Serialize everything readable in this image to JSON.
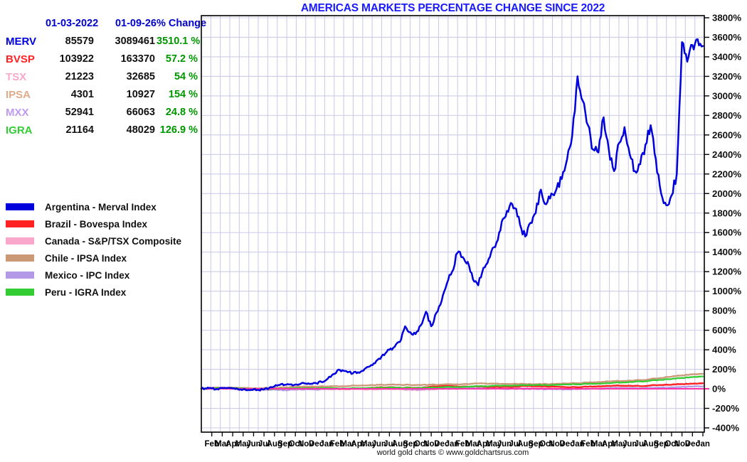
{
  "title": "AMERICAS MARKETS PERCENTAGE CHANGE SINCE 2022",
  "footer": "world gold charts © www.goldchartsrus.com",
  "colors": {
    "title_blue": "#1a1aff",
    "header_blue": "#0000cc",
    "change_green": "#009600",
    "grid": "#ccccea",
    "frame": "#000000",
    "zero_line": "#ff33aa"
  },
  "table": {
    "headers": [
      "01-03-2022",
      "01-09-26",
      "% Change"
    ],
    "rows": [
      {
        "symbol": "MERV",
        "color": "#0000dd",
        "start": "85579",
        "end": "3089461",
        "change": "3510.1 %"
      },
      {
        "symbol": "BVSP",
        "color": "#ff2222",
        "start": "103922",
        "end": "163370",
        "change": "57.2 %"
      },
      {
        "symbol": "TSX",
        "color": "#f9a8cb",
        "start": "21223",
        "end": "32685",
        "change": "54 %"
      },
      {
        "symbol": "IPSA",
        "color": "#dfab89",
        "start": "4301",
        "end": "10927",
        "change": "154 %"
      },
      {
        "symbol": "MXX",
        "color": "#c09af0",
        "start": "52941",
        "end": "66063",
        "change": "24.8 %"
      },
      {
        "symbol": "IGRA",
        "color": "#33cc33",
        "start": "21164",
        "end": "48029",
        "change": "126.9 %"
      }
    ]
  },
  "legend": [
    {
      "label": "Argentina - Merval Index",
      "color": "#0000dd"
    },
    {
      "label": "Brazil - Bovespa Index",
      "color": "#ff2222"
    },
    {
      "label": "Canada - S&P/TSX Composite",
      "color": "#f9a8cb"
    },
    {
      "label": "Chile - IPSA Index",
      "color": "#cc9977"
    },
    {
      "label": "Mexico - IPC Index",
      "color": "#b399e6"
    },
    {
      "label": "Peru - IGRA Index",
      "color": "#33cc33"
    }
  ],
  "chart_data": {
    "type": "line",
    "title": "AMERICAS MARKETS PERCENTAGE CHANGE SINCE 2022",
    "x_start": "2022-01-03",
    "x_end": "2026-01-09",
    "x_tick_labels": [
      "Feb",
      "Mar",
      "Apr",
      "May",
      "Jun",
      "Jul",
      "Aug",
      "Sep",
      "Oct",
      "Nov",
      "Dec",
      "Jan",
      "Feb",
      "Mar",
      "Apr",
      "May",
      "Jun",
      "Jul",
      "Aug",
      "Sep",
      "Oct",
      "Nov",
      "Dec",
      "Jan",
      "Feb",
      "Mar",
      "Apr",
      "May",
      "Jun",
      "Jul",
      "Aug",
      "Sep",
      "Oct",
      "Nov",
      "Dec",
      "Jan",
      "Feb",
      "Mar",
      "Apr",
      "May",
      "Jun",
      "Jul",
      "Aug",
      "Sep",
      "Oct",
      "Nov",
      "Dec",
      "Jan"
    ],
    "ylim": [
      -400,
      3800
    ],
    "y_tick_step": 200,
    "y_tick_suffix": "%",
    "grid": true,
    "zero_line": 0,
    "legend_position": "left",
    "series": [
      {
        "name": "Canada - S&P/TSX Composite",
        "symbol": "TSX",
        "color": "#f9a8cb",
        "points_per_month": 1,
        "values": [
          0,
          0,
          3,
          -2,
          -5,
          -11,
          -8,
          -8,
          -12,
          -9,
          -5,
          -9,
          -3,
          -2,
          -5,
          -3,
          -7,
          -6,
          -4,
          -7,
          -10,
          -12,
          -6,
          -2,
          -1,
          0,
          3,
          1,
          4,
          2,
          6,
          9,
          12,
          14,
          19,
          16,
          18,
          19,
          17,
          15,
          21,
          25,
          28,
          33,
          38,
          42,
          46,
          50,
          54
        ]
      },
      {
        "name": "Mexico - IPC Index",
        "symbol": "MXX",
        "color": "#b399e6",
        "points_per_month": 1,
        "values": [
          0,
          1,
          5,
          3,
          -2,
          -9,
          -8,
          -6,
          -13,
          -8,
          -3,
          -8,
          2,
          0,
          2,
          4,
          6,
          1,
          3,
          2,
          -3,
          -7,
          0,
          8,
          9,
          6,
          8,
          7,
          5,
          -1,
          0,
          -2,
          -1,
          -4,
          -6,
          -6,
          -4,
          -1,
          0,
          5,
          8,
          9,
          7,
          10,
          13,
          16,
          20,
          23,
          24.8
        ]
      },
      {
        "name": "Brazil - Bovespa Index",
        "symbol": "BVSP",
        "color": "#ff2222",
        "points_per_month": 1,
        "values": [
          0,
          8,
          12,
          10,
          5,
          -5,
          -2,
          6,
          8,
          10,
          8,
          5,
          5,
          2,
          0,
          3,
          8,
          14,
          17,
          12,
          13,
          9,
          22,
          29,
          28,
          24,
          23,
          21,
          17,
          19,
          22,
          31,
          27,
          25,
          22,
          16,
          17,
          21,
          27,
          30,
          33,
          33,
          28,
          35,
          39,
          42,
          50,
          52,
          57.2
        ]
      },
      {
        "name": "Chile - IPSA Index",
        "symbol": "IPSA",
        "color": "#cc9977",
        "points_per_month": 1,
        "values": [
          0,
          3,
          8,
          12,
          10,
          5,
          8,
          12,
          15,
          20,
          24,
          22,
          25,
          28,
          28,
          33,
          36,
          40,
          44,
          42,
          40,
          38,
          42,
          44,
          46,
          48,
          52,
          55,
          52,
          50,
          53,
          50,
          48,
          50,
          52,
          55,
          58,
          64,
          70,
          76,
          80,
          85,
          90,
          100,
          110,
          125,
          138,
          148,
          154
        ]
      },
      {
        "name": "Peru - IGRA Index",
        "symbol": "IGRA",
        "color": "#33cc33",
        "points_per_month": 1,
        "values": [
          0,
          4,
          10,
          8,
          2,
          -4,
          -2,
          0,
          2,
          5,
          6,
          4,
          8,
          6,
          3,
          6,
          8,
          10,
          14,
          12,
          10,
          8,
          12,
          16,
          18,
          20,
          24,
          26,
          30,
          32,
          35,
          38,
          40,
          38,
          42,
          44,
          46,
          50,
          54,
          58,
          64,
          70,
          76,
          84,
          92,
          100,
          112,
          120,
          126.9
        ]
      },
      {
        "name": "Argentina - Merval Index",
        "symbol": "MERV",
        "color": "#0000dd",
        "points_per_month": 2,
        "values": [
          0,
          3,
          5,
          -2,
          8,
          10,
          5,
          -3,
          -6,
          -10,
          -5,
          -12,
          -8,
          10,
          25,
          40,
          42,
          45,
          44,
          50,
          55,
          52,
          58,
          70,
          95,
          140,
          185,
          190,
          170,
          158,
          170,
          185,
          225,
          260,
          310,
          345,
          400,
          430,
          480,
          640,
          580,
          560,
          650,
          790,
          640,
          780,
          900,
          1080,
          1200,
          1390,
          1350,
          1300,
          1120,
          1060,
          1240,
          1330,
          1450,
          1600,
          1750,
          1870,
          1850,
          1680,
          1560,
          1700,
          1800,
          2040,
          1890,
          2000,
          2050,
          2150,
          2350,
          2600,
          3200,
          2950,
          2700,
          2450,
          2420,
          2780,
          2450,
          2230,
          2520,
          2680,
          2400,
          2230,
          2300,
          2500,
          2700,
          2350,
          2000,
          1880,
          1980,
          2200,
          3550,
          3350,
          3520,
          3580,
          3510
        ]
      }
    ]
  }
}
